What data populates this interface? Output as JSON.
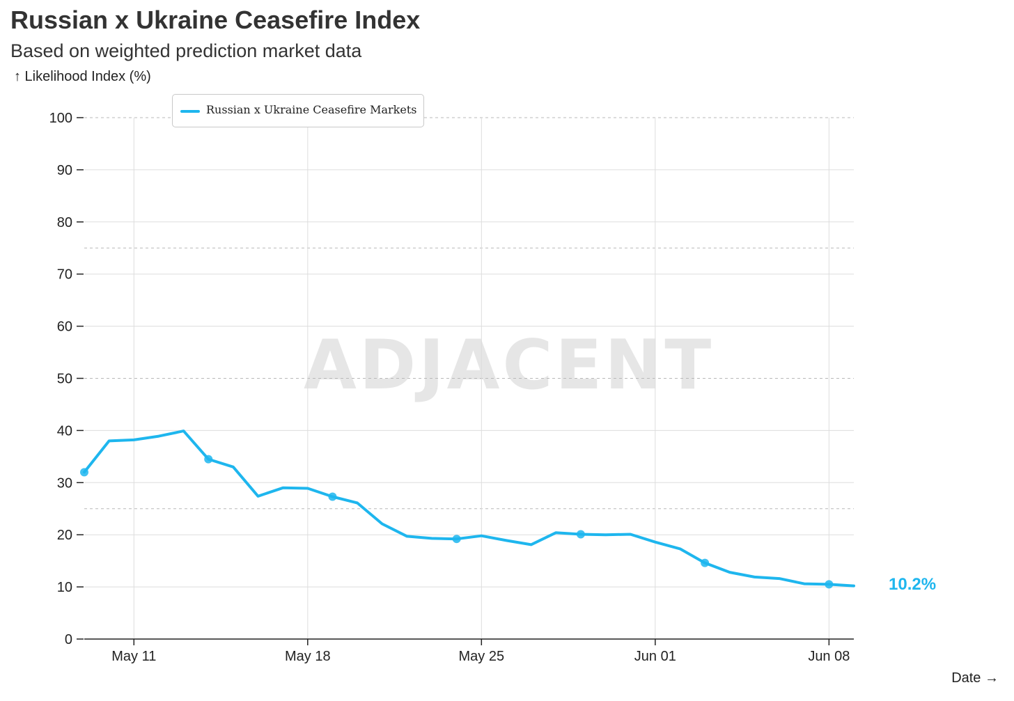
{
  "chart_data": {
    "type": "line",
    "title": "Russian x Ukraine Ceasefire Index",
    "subtitle": "Based on weighted prediction market data",
    "ylabel": "↑ Likelihood Index (%)",
    "xlabel": "Date →",
    "ylim": [
      0,
      100
    ],
    "yticks": [
      0,
      10,
      20,
      30,
      40,
      50,
      60,
      70,
      80,
      90,
      100
    ],
    "dashed_reference_lines": [
      25,
      50,
      75,
      100
    ],
    "x_start": "May 09",
    "x_end": "Jun 09",
    "xticks": [
      {
        "day": 2,
        "label": "May 11"
      },
      {
        "day": 9,
        "label": "May 18"
      },
      {
        "day": 16,
        "label": "May 25"
      },
      {
        "day": 23,
        "label": "Jun 01"
      },
      {
        "day": 30,
        "label": "Jun 08"
      }
    ],
    "legend": "Russian x Ukraine Ceasefire Markets",
    "watermark": "ADJACENT",
    "series": [
      {
        "name": "Russian x Ukraine Ceasefire Markets",
        "color": "#1eb6ee",
        "x": [
          0,
          1,
          2,
          3,
          4,
          5,
          6,
          7,
          8,
          9,
          10,
          11,
          12,
          13,
          14,
          15,
          16,
          17,
          18,
          19,
          20,
          21,
          22,
          23,
          24,
          25,
          26,
          27,
          28,
          29,
          30,
          31
        ],
        "values": [
          32.0,
          38.0,
          38.2,
          38.9,
          39.9,
          34.5,
          33.0,
          27.4,
          29.0,
          28.9,
          27.3,
          26.1,
          22.1,
          19.7,
          19.3,
          19.2,
          19.8,
          18.9,
          18.1,
          20.4,
          20.1,
          20.0,
          20.1,
          18.6,
          17.3,
          14.6,
          12.8,
          11.9,
          11.6,
          10.6,
          10.5,
          10.2
        ],
        "markers": [
          0,
          5,
          10,
          15,
          20,
          25,
          30
        ]
      }
    ],
    "last_value_label": "10.2%"
  }
}
